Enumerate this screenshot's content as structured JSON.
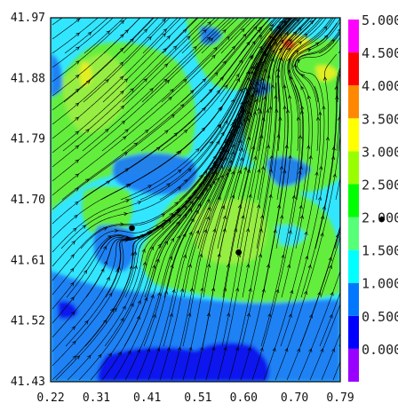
{
  "chart_data": {
    "type": "heatmap",
    "title": "",
    "xlabel": "",
    "ylabel": "",
    "xlim": [
      0.22,
      0.79
    ],
    "ylim": [
      41.43,
      41.97
    ],
    "x_ticks": [
      "0.22",
      "0.31",
      "0.41",
      "0.51",
      "0.60",
      "0.70",
      "0.79"
    ],
    "y_ticks": [
      "41.43",
      "41.52",
      "41.61",
      "41.70",
      "41.79",
      "41.88",
      "41.97"
    ],
    "overlay": "streamlines with arrowheads",
    "points": [
      {
        "x": 0.38,
        "y": 41.658
      },
      {
        "x": 0.59,
        "y": 41.622
      }
    ],
    "colorbar": {
      "min": 0.0,
      "max": 5.0,
      "step": 0.5,
      "labels": [
        "0.000",
        "0.500",
        "1.000",
        "1.500",
        "2.000",
        "2.500",
        "3.000",
        "3.500",
        "4.000",
        "4.500",
        "5.000"
      ],
      "colors": [
        "#9900ff",
        "#0000ff",
        "#0077ff",
        "#00ffff",
        "#55ff77",
        "#00ff00",
        "#99ff00",
        "#ffff00",
        "#ff8800",
        "#ff0000",
        "#ff00ff"
      ]
    },
    "field_colors": {
      "cyan": "#33e6ff",
      "green": "#66ee33",
      "lightgreen": "#99ee44",
      "blue": "#1c7cf4",
      "darkblue": "#1010ee",
      "yellow": "#e8ee22",
      "red": "#ff4422"
    }
  }
}
